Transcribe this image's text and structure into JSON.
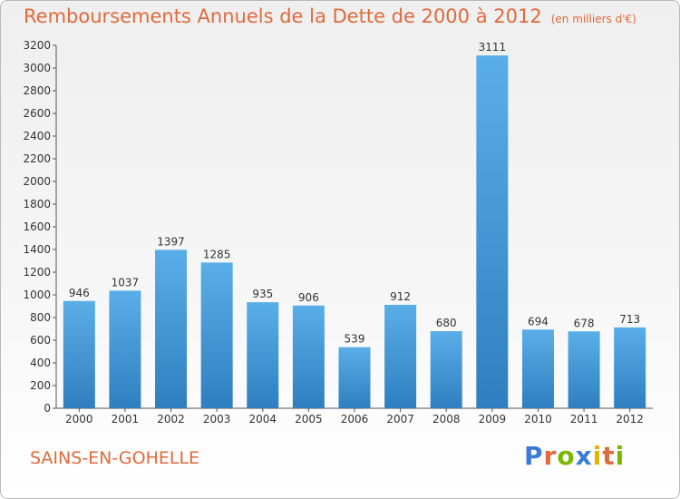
{
  "header": {
    "title": "Remboursements Annuels de la Dette de 2000 à 2012",
    "unit": "(en milliers d'€)"
  },
  "footer": {
    "city": "SAINS-EN-GOHELLE",
    "logo": "Proxiti"
  },
  "colors": {
    "title": "#e06a3d",
    "bar_top": "#5aaee8",
    "bar_bottom": "#2f7fc0",
    "logo_letters": [
      "#3a7bd5",
      "#e06a3d",
      "#7ab800",
      "#3a7bd5",
      "#e0b400",
      "#e06a3d",
      "#7ab800"
    ]
  },
  "chart_data": {
    "type": "bar",
    "title": "Remboursements Annuels de la Dette de 2000 à 2012",
    "xlabel": "",
    "ylabel": "",
    "categories": [
      "2000",
      "2001",
      "2002",
      "2003",
      "2004",
      "2005",
      "2006",
      "2007",
      "2008",
      "2009",
      "2010",
      "2011",
      "2012"
    ],
    "values": [
      946,
      1037,
      1397,
      1285,
      935,
      906,
      539,
      912,
      680,
      3111,
      694,
      678,
      713
    ],
    "ylim": [
      0,
      3200
    ],
    "yticks": [
      0,
      200,
      400,
      600,
      800,
      1000,
      1200,
      1400,
      1600,
      1800,
      2000,
      2200,
      2400,
      2600,
      2800,
      3000,
      3200
    ],
    "grid": false,
    "legend": "none"
  }
}
